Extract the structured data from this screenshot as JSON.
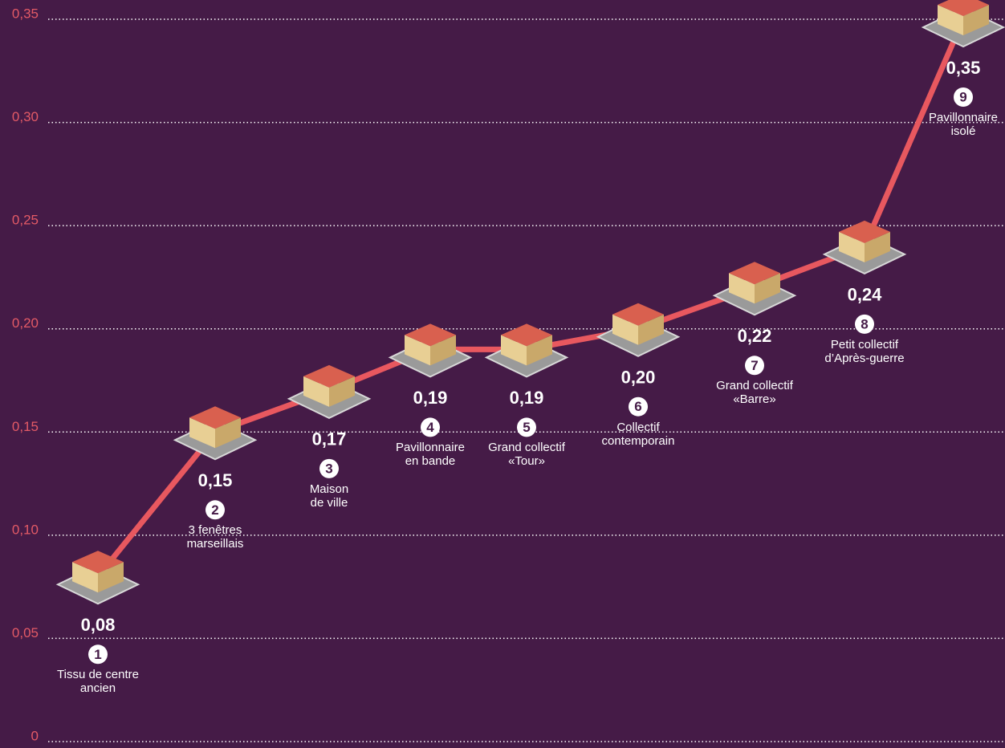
{
  "chart_data": {
    "type": "line",
    "categories": [
      "Tissu de centre\nancien",
      "3 fenêtres\nmarseillais",
      "Maison\nde ville",
      "Pavillonnaire\nen bande",
      "Grand collectif\n«Tour»",
      "Collectif\ncontemporain",
      "Grand collectif\n«Barre»",
      "Petit collectif\nd’Après-guerre",
      "Pavillonnaire\nisolé"
    ],
    "numbers": [
      1,
      2,
      3,
      4,
      5,
      6,
      7,
      8,
      9
    ],
    "values": [
      0.08,
      0.15,
      0.17,
      0.19,
      0.19,
      0.2,
      0.22,
      0.24,
      0.35
    ],
    "value_labels": [
      "0,08",
      "0,15",
      "0,17",
      "0,19",
      "0,19",
      "0,20",
      "0,22",
      "0,24",
      "0,35"
    ],
    "color": "#e8585f",
    "ylim": [
      0,
      0.35
    ],
    "yticks": [
      0,
      {
        "value": 0.05,
        "label": "0,05"
      },
      {
        "value": 0.1,
        "label": "0,10"
      },
      {
        "value": 0.15,
        "label": "0,15"
      },
      {
        "value": 0.2,
        "label": "0,20"
      },
      {
        "value": 0.25,
        "label": "0,25"
      },
      {
        "value": 0.3,
        "label": "0,30"
      },
      {
        "value": 0.35,
        "label": "0,35"
      }
    ],
    "grid": true
  }
}
